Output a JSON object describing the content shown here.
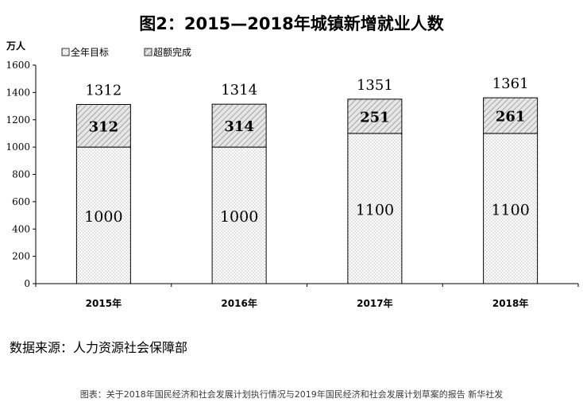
{
  "chart_data": {
    "type": "bar",
    "stacked": true,
    "title": "图2：2015—2018年城镇新增就业人数",
    "unit_label": "万人",
    "categories": [
      "2015年",
      "2016年",
      "2017年",
      "2018年"
    ],
    "series": [
      {
        "name": "全年目标",
        "values": [
          1000,
          1000,
          1100,
          1100
        ],
        "pattern": "dots"
      },
      {
        "name": "超额完成",
        "values": [
          312,
          314,
          251,
          261
        ],
        "pattern": "hatch"
      }
    ],
    "totals": [
      1312,
      1314,
      1351,
      1361
    ],
    "ylim": [
      0,
      1600
    ],
    "yticks": [
      0,
      200,
      400,
      600,
      800,
      1000,
      1200,
      1400,
      1600
    ],
    "legend_position": "top-left",
    "grid": false
  },
  "source_text": "数据来源：人力资源社会保障部",
  "caption_text": "图表：关于2018年国民经济和社会发展计划执行情况与2019年国民经济和社会发展计划草案的报告 新华社发"
}
